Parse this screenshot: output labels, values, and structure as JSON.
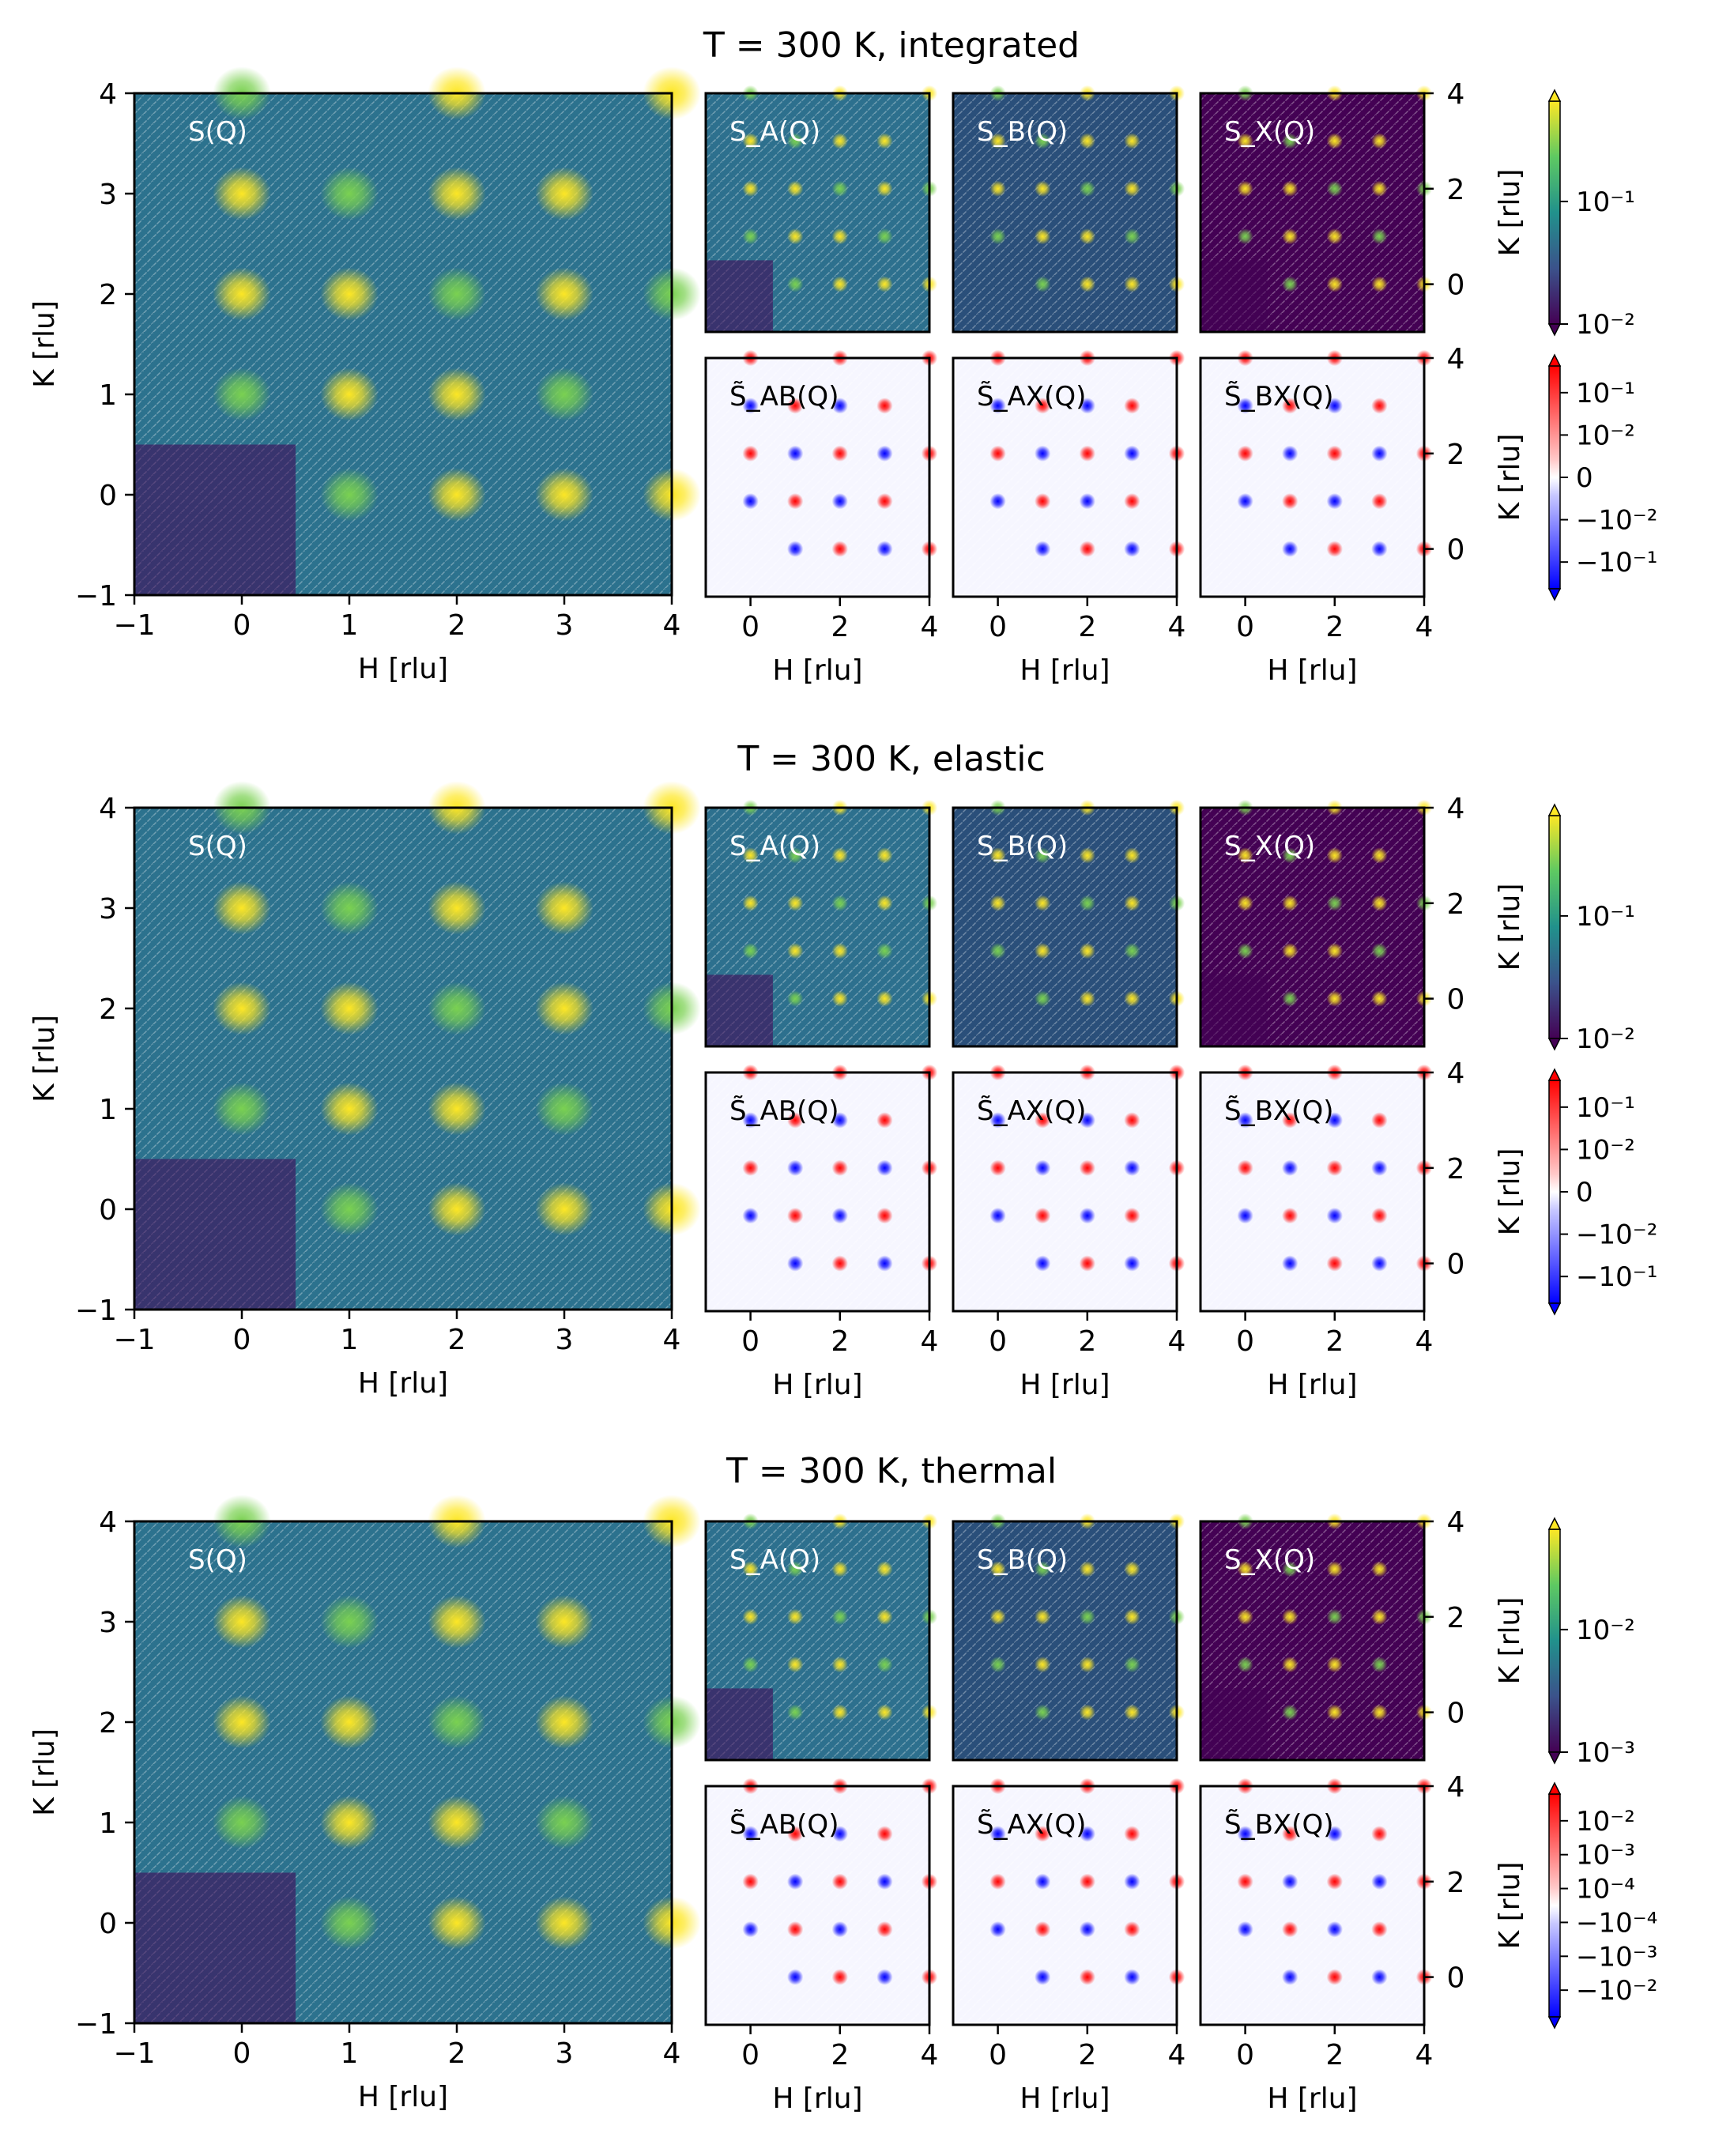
{
  "colors": {
    "viridis_low": "#440154",
    "viridis_mid": "#21918c",
    "viridis_high": "#fde725",
    "diverging_neg": "#0000ff",
    "diverging_zero": "#ffffff",
    "diverging_pos": "#ff0000"
  },
  "chart_data": [
    {
      "type": "heatmap",
      "title": "T = 300 K, integrated",
      "xlabel": "H [rlu]",
      "ylabel": "K [rlu]",
      "xlim": [
        -1,
        4
      ],
      "ylim": [
        -1,
        4
      ],
      "panels": [
        {
          "label": "S(Q)",
          "colormap": "viridis",
          "x_ticks": [
            "−1",
            "0",
            "1",
            "2",
            "3",
            "4"
          ],
          "y_ticks": [
            "−1",
            "0",
            "1",
            "2",
            "3",
            "4"
          ]
        },
        {
          "label": "S_A(Q)",
          "colormap": "viridis",
          "x_ticks": [
            "0",
            "2",
            "4"
          ]
        },
        {
          "label": "S_B(Q)",
          "colormap": "viridis",
          "x_ticks": [
            "0",
            "2",
            "4"
          ]
        },
        {
          "label": "S_X(Q)",
          "colormap": "viridis",
          "x_ticks": [
            "0",
            "2",
            "4"
          ],
          "y_ticks_right": [
            "0",
            "2",
            "4"
          ]
        },
        {
          "label": "S̃_AB(Q)",
          "colormap": "bwr"
        },
        {
          "label": "S̃_AX(Q)",
          "colormap": "bwr"
        },
        {
          "label": "S̃_BX(Q)",
          "colormap": "bwr"
        }
      ],
      "colorbars": [
        {
          "scale": "log",
          "ticks": [
            "10⁻¹",
            "10⁻²"
          ],
          "range": [
            0.01,
            0.6
          ],
          "extend": "both"
        },
        {
          "scale": "symlog",
          "ticks": [
            "10⁻¹",
            "10⁻²",
            "0",
            "−10⁻²",
            "−10⁻¹"
          ],
          "extend": "both"
        }
      ],
      "peaks": [
        [
          0,
          1
        ],
        [
          0,
          2
        ],
        [
          0,
          3
        ],
        [
          1,
          0
        ],
        [
          1,
          1
        ],
        [
          1,
          2
        ],
        [
          1,
          3
        ],
        [
          2,
          0
        ],
        [
          2,
          1
        ],
        [
          2,
          2
        ],
        [
          2,
          3
        ],
        [
          3,
          0
        ],
        [
          3,
          1
        ],
        [
          3,
          2
        ],
        [
          3,
          3
        ],
        [
          0,
          4
        ],
        [
          2,
          4
        ],
        [
          4,
          0
        ],
        [
          4,
          2
        ],
        [
          4,
          4
        ]
      ]
    },
    {
      "type": "heatmap",
      "title": "T = 300 K, elastic",
      "xlabel": "H [rlu]",
      "ylabel": "K [rlu]",
      "xlim": [
        -1,
        4
      ],
      "ylim": [
        -1,
        4
      ],
      "panels": [
        {
          "label": "S(Q)",
          "colormap": "viridis"
        },
        {
          "label": "S_A(Q)",
          "colormap": "viridis"
        },
        {
          "label": "S_B(Q)",
          "colormap": "viridis"
        },
        {
          "label": "S_X(Q)",
          "colormap": "viridis"
        },
        {
          "label": "S̃_AB(Q)",
          "colormap": "bwr"
        },
        {
          "label": "S̃_AX(Q)",
          "colormap": "bwr"
        },
        {
          "label": "S̃_BX(Q)",
          "colormap": "bwr"
        }
      ],
      "colorbars": [
        {
          "scale": "log",
          "ticks": [
            "10⁻¹",
            "10⁻²"
          ],
          "range": [
            0.01,
            0.6
          ],
          "extend": "both"
        },
        {
          "scale": "symlog",
          "ticks": [
            "10⁻¹",
            "10⁻²",
            "0",
            "−10⁻²",
            "−10⁻¹"
          ],
          "extend": "both"
        }
      ]
    },
    {
      "type": "heatmap",
      "title": "T = 300 K, thermal",
      "xlabel": "H [rlu]",
      "ylabel": "K [rlu]",
      "xlim": [
        -1,
        4
      ],
      "ylim": [
        -1,
        4
      ],
      "panels": [
        {
          "label": "S(Q)",
          "colormap": "viridis"
        },
        {
          "label": "S_A(Q)",
          "colormap": "viridis"
        },
        {
          "label": "S_B(Q)",
          "colormap": "viridis"
        },
        {
          "label": "S_X(Q)",
          "colormap": "viridis"
        },
        {
          "label": "S̃_AB(Q)",
          "colormap": "bwr"
        },
        {
          "label": "S̃_AX(Q)",
          "colormap": "bwr"
        },
        {
          "label": "S̃_BX(Q)",
          "colormap": "bwr"
        }
      ],
      "colorbars": [
        {
          "scale": "log",
          "ticks": [
            "10⁻²",
            "10⁻³"
          ],
          "range": [
            0.0006,
            0.06
          ],
          "extend": "both"
        },
        {
          "scale": "symlog",
          "ticks": [
            "10⁻²",
            "10⁻³",
            "10⁻⁴",
            "−10⁻⁴",
            "−10⁻³",
            "−10⁻²"
          ],
          "extend": "both"
        }
      ]
    }
  ]
}
